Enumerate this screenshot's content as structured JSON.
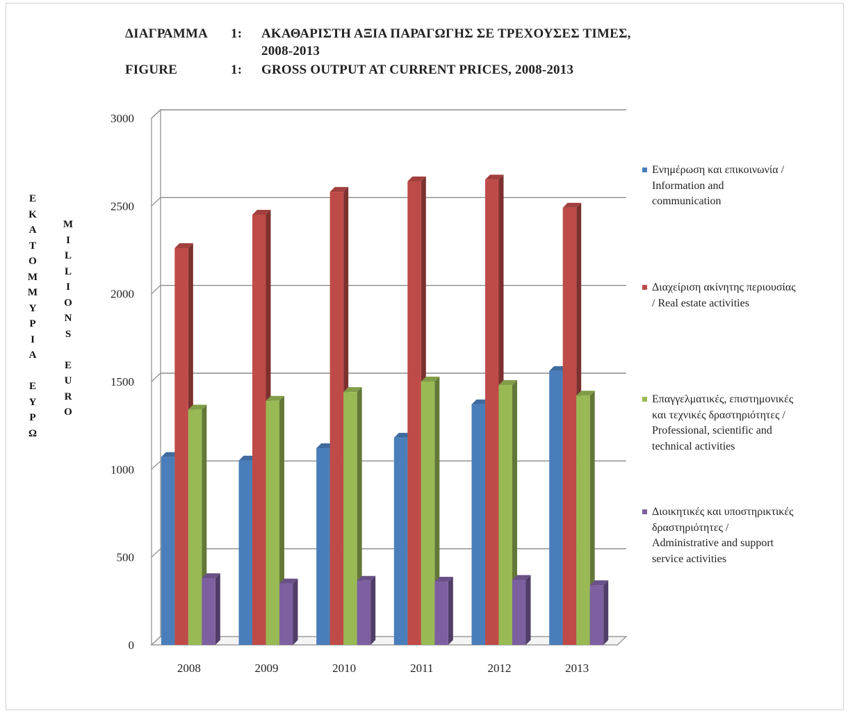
{
  "chart_data": {
    "type": "bar",
    "title_lines": [
      {
        "label": "ΔΙΑΓΡΑΜΜΑ",
        "num": "1:",
        "text": "ΑΚΑΘΑΡΙΣΤΗ ΑΞΙΑ ΠΑΡΑΓΩΓΗΣ ΣΕ ΤΡΕΧΟΥΣΕΣ ΤΙΜΕΣ,"
      },
      {
        "label": "",
        "num": "",
        "text": "2008-2013"
      },
      {
        "label": "FIGURE",
        "num": "1:",
        "text": "GROSS OUTPUT AT CURRENT PRICES, 2008-2013"
      }
    ],
    "ylabel_greek": "ΕΚΑΤΟΜΜΥΡΙΑ ΕΥΡΩ",
    "ylabel_english": "MILLIONS EURO",
    "categories": [
      "2008",
      "2009",
      "2010",
      "2011",
      "2012",
      "2013"
    ],
    "ylim": [
      0,
      3000
    ],
    "yticks": [
      0,
      500,
      1000,
      1500,
      2000,
      2500,
      3000
    ],
    "grid": true,
    "legend_position": "right",
    "series": [
      {
        "name": "Ενημέρωση και επικοινωνία / Information and communication",
        "legend_lines": [
          "Ενημέρωση και επικοινωνία /",
          "Information and",
          "communication"
        ],
        "color": "#4a7ebb",
        "values": [
          1070,
          1050,
          1120,
          1180,
          1370,
          1560
        ]
      },
      {
        "name": "Διαχείριση ακίνητης περιουσίας / Real estate activities",
        "legend_lines": [
          "Διαχείριση ακίνητης περιουσίας",
          "/ Real estate activities"
        ],
        "color": "#be4b48",
        "values": [
          2260,
          2450,
          2580,
          2640,
          2650,
          2490
        ]
      },
      {
        "name": "Επαγγελματικές, επιστημονικές και τεχνικές δραστηριότητες / Professional, scientific and technical activities",
        "legend_lines": [
          "Επαγγελματικές, επιστημονικές",
          "και τεχνικές δραστηριότητες /",
          "Professional, scientific and",
          "technical activities"
        ],
        "color": "#98b954",
        "values": [
          1340,
          1390,
          1440,
          1500,
          1480,
          1420
        ]
      },
      {
        "name": "Διοικητικές και υποστηρικτικές δραστηριότητες / Administrative and support service activities",
        "legend_lines": [
          "Διοικητικές και υποστηρικτικές",
          "δραστηριότητες /",
          "Administrative and support",
          "service activities"
        ],
        "color": "#7d60a0",
        "values": [
          380,
          350,
          365,
          360,
          370,
          340
        ]
      }
    ]
  }
}
